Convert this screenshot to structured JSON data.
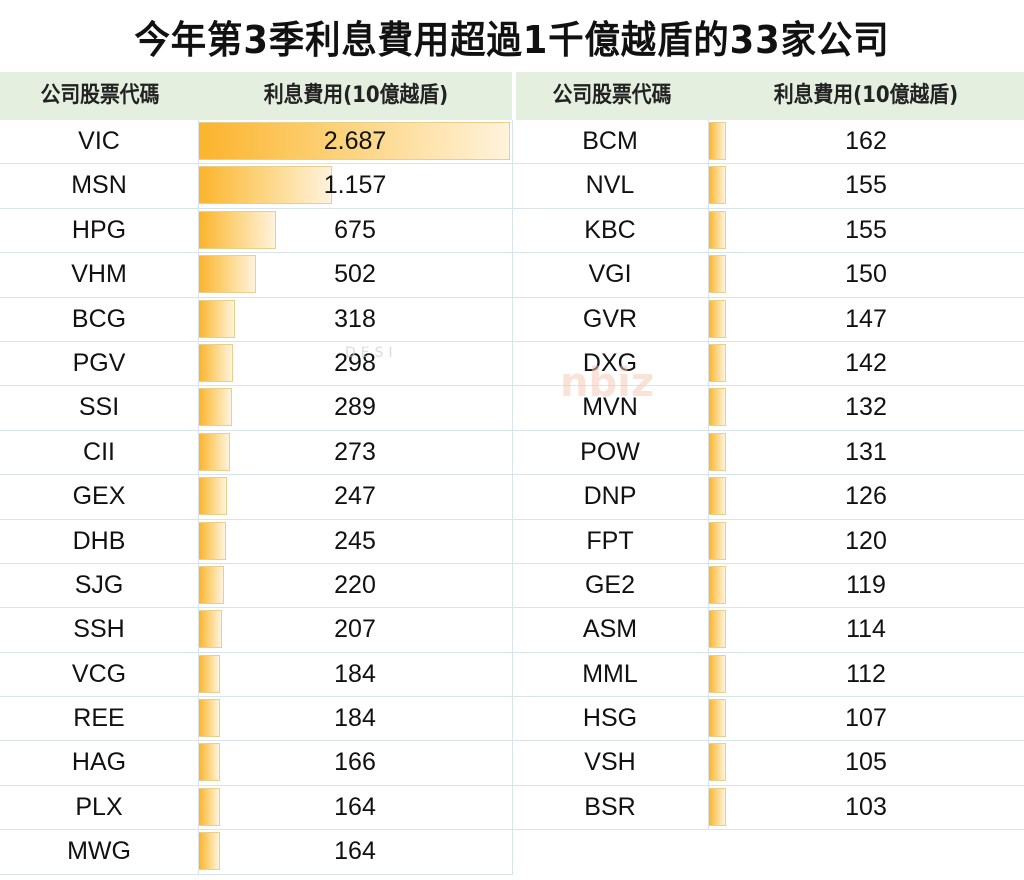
{
  "title": "今年第3季利息費用超過1千億越盾的33家公司",
  "headers": {
    "left_code": "公司股票代碼",
    "left_value": "利息費用(10億越盾)",
    "right_code": "公司股票代碼",
    "right_value": "利息費用(10億越盾)"
  },
  "colors": {
    "bar_start": "#fbb42c",
    "bar_end": "#fff3dc",
    "header_bg": "#e4efdf",
    "grid": "#d9e3ea"
  },
  "left_rows": [
    {
      "code": "VIC",
      "value": "2.687"
    },
    {
      "code": "MSN",
      "value": "1.157"
    },
    {
      "code": "HPG",
      "value": "675"
    },
    {
      "code": "VHM",
      "value": "502"
    },
    {
      "code": "BCG",
      "value": "318"
    },
    {
      "code": "PGV",
      "value": "298"
    },
    {
      "code": "SSI",
      "value": "289"
    },
    {
      "code": "CII",
      "value": "273"
    },
    {
      "code": "GEX",
      "value": "247"
    },
    {
      "code": "DHB",
      "value": "245"
    },
    {
      "code": "SJG",
      "value": "220"
    },
    {
      "code": "SSH",
      "value": "207"
    },
    {
      "code": "VCG",
      "value": "184"
    },
    {
      "code": "REE",
      "value": "184"
    },
    {
      "code": "HAG",
      "value": "166"
    },
    {
      "code": "PLX",
      "value": "164"
    },
    {
      "code": "MWG",
      "value": "164"
    }
  ],
  "right_rows": [
    {
      "code": "BCM",
      "value": "162"
    },
    {
      "code": "NVL",
      "value": "155"
    },
    {
      "code": "KBC",
      "value": "155"
    },
    {
      "code": "VGI",
      "value": "150"
    },
    {
      "code": "GVR",
      "value": "147"
    },
    {
      "code": "DXG",
      "value": "142"
    },
    {
      "code": "MVN",
      "value": "132"
    },
    {
      "code": "POW",
      "value": "131"
    },
    {
      "code": "DNP",
      "value": "126"
    },
    {
      "code": "FPT",
      "value": "120"
    },
    {
      "code": "GE2",
      "value": "119"
    },
    {
      "code": "ASM",
      "value": "114"
    },
    {
      "code": "MML",
      "value": "112"
    },
    {
      "code": "HSG",
      "value": "107"
    },
    {
      "code": "VSH",
      "value": "105"
    },
    {
      "code": "BSR",
      "value": "103"
    }
  ],
  "watermark": {
    "left_text": "DESI",
    "right_text": "nbiz"
  },
  "chart_data": {
    "type": "bar",
    "title": "今年第3季利息費用超過1千億越盾的33家公司",
    "xlabel": "公司股票代碼",
    "ylabel": "利息費用(10億越盾)",
    "orientation": "horizontal data bars in table",
    "categories": [
      "VIC",
      "MSN",
      "HPG",
      "VHM",
      "BCG",
      "PGV",
      "SSI",
      "CII",
      "GEX",
      "DHB",
      "SJG",
      "SSH",
      "VCG",
      "REE",
      "HAG",
      "PLX",
      "MWG",
      "BCM",
      "NVL",
      "KBC",
      "VGI",
      "GVR",
      "DXG",
      "MVN",
      "POW",
      "DNP",
      "FPT",
      "GE2",
      "ASM",
      "MML",
      "HSG",
      "VSH",
      "BSR"
    ],
    "values": [
      2687,
      1157,
      675,
      502,
      318,
      298,
      289,
      273,
      247,
      245,
      220,
      207,
      184,
      184,
      166,
      164,
      164,
      162,
      155,
      155,
      150,
      147,
      142,
      132,
      131,
      126,
      120,
      119,
      114,
      112,
      107,
      105,
      103
    ],
    "xlim": [
      0,
      2687
    ],
    "grid": true,
    "legend": "none"
  }
}
